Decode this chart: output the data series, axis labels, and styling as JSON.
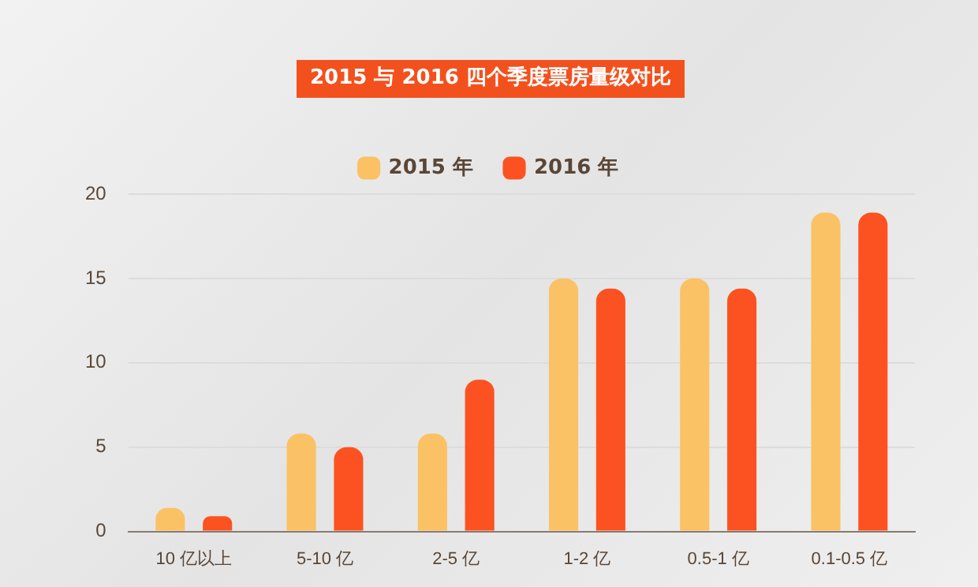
{
  "chart_data": {
    "type": "bar",
    "title": "2015 与 2016 四个季度票房量级对比",
    "categories": [
      "10 亿以上",
      "5-10 亿",
      "2-5 亿",
      "1-2 亿",
      "0.5-1 亿",
      "0.1-0.5 亿"
    ],
    "series": [
      {
        "name": "2015 年",
        "color": "#fbc165",
        "values": [
          1.4,
          5.8,
          5.8,
          15,
          15,
          18.9
        ]
      },
      {
        "name": "2016 年",
        "color": "#fc5221",
        "values": [
          0.9,
          5,
          9,
          14.4,
          14.4,
          18.9
        ]
      }
    ],
    "ylim": [
      0,
      20
    ],
    "yticks": [
      0,
      5,
      10,
      15,
      20
    ],
    "grid": "y",
    "legend": "top"
  }
}
